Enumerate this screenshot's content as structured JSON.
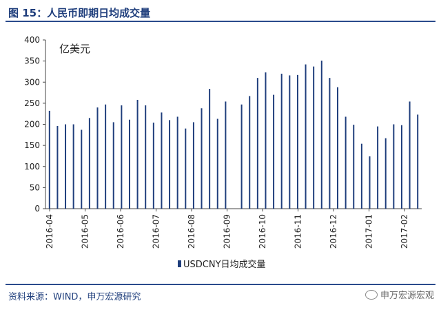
{
  "figure": {
    "title": "图 15：人民币即期日均成交量",
    "source": "资料来源：WIND，申万宏源研究",
    "watermark": "申万宏源宏观",
    "watermark_icon": "wechat-icon",
    "accent_color": "#1f3e7c"
  },
  "chart_data": {
    "type": "bar",
    "unit_label": "亿美元",
    "ylim": [
      0,
      400
    ],
    "yticks": [
      0,
      50,
      100,
      150,
      200,
      250,
      300,
      350,
      400
    ],
    "grid": false,
    "legend_position": "bottom-center",
    "x_tick_labels": [
      "2016-04",
      "2016-05",
      "2016-06",
      "2016-07",
      "2016-08",
      "2016-09",
      "2016-10",
      "2016-11",
      "2016-12",
      "2017-01",
      "2017-02"
    ],
    "series": [
      {
        "name": "USDCNY日均成交量",
        "color": "#1f3e7c",
        "values": [
          232,
          196,
          200,
          200,
          187,
          215,
          240,
          247,
          205,
          245,
          211,
          258,
          245,
          204,
          228,
          210,
          218,
          190,
          205,
          238,
          284,
          213,
          254,
          0,
          247,
          267,
          310,
          323,
          270,
          320,
          316,
          317,
          342,
          337,
          351,
          310,
          288,
          218,
          199,
          154,
          124,
          195,
          167,
          200,
          198,
          254,
          223
        ]
      }
    ]
  }
}
